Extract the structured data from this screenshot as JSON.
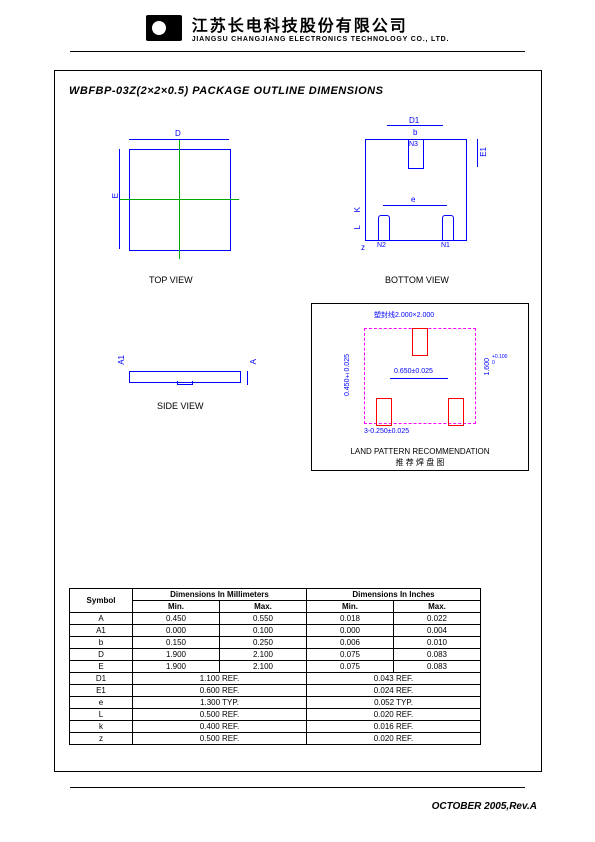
{
  "company": {
    "chinese": "江苏长电科技股份有限公司",
    "english": "JIANGSU CHANGJIANG ELECTRONICS TECHNOLOGY CO., LTD."
  },
  "title": "WBFBP-03Z(2×2×0.5)  PACKAGE  OUTLINE  DIMENSIONS",
  "views": {
    "top": "TOP VIEW",
    "bottom": "BOTTOM VIEW",
    "side": "SIDE VIEW"
  },
  "topview": {
    "dim_D": "D",
    "dim_E": "E"
  },
  "botview": {
    "D1": "D1",
    "b": "b",
    "N3": "N3",
    "E1": "E1",
    "K": "K",
    "L": "L",
    "z": "z",
    "N2": "N2",
    "N1": "N1",
    "e": "e"
  },
  "sideview": {
    "A": "A",
    "A1": "A1"
  },
  "landpattern": {
    "top_dim": "塑封线2.000×2.000",
    "center_dim": "0.650±0.025",
    "left_dim": "0.450±0.025",
    "right_dim": "1.600",
    "right_sup": "+0.100\n0",
    "bottom_dim": "3-0.250±0.025",
    "title": "LAND PATTERN RECOMMENDATION",
    "subtitle": "推 荐 焊 盘 图"
  },
  "table": {
    "headers": {
      "symbol": "Symbol",
      "mm": "Dimensions In Millimeters",
      "in": "Dimensions In Inches",
      "min": "Min.",
      "max": "Max."
    },
    "rows": [
      {
        "sym": "A",
        "mm_min": "0.450",
        "mm_max": "0.550",
        "in_min": "0.018",
        "in_max": "0.022"
      },
      {
        "sym": "A1",
        "mm_min": "0.000",
        "mm_max": "0.100",
        "in_min": "0.000",
        "in_max": "0.004"
      },
      {
        "sym": "b",
        "mm_min": "0.150",
        "mm_max": "0.250",
        "in_min": "0.006",
        "in_max": "0.010"
      },
      {
        "sym": "D",
        "mm_min": "1.900",
        "mm_max": "2.100",
        "in_min": "0.075",
        "in_max": "0.083"
      },
      {
        "sym": "E",
        "mm_min": "1.900",
        "mm_max": "2.100",
        "in_min": "0.075",
        "in_max": "0.083"
      },
      {
        "sym": "D1",
        "mm": "1.100 REF.",
        "in": "0.043 REF."
      },
      {
        "sym": "E1",
        "mm": "0.600 REF.",
        "in": "0.024 REF."
      },
      {
        "sym": "e",
        "mm": "1.300 TYP.",
        "in": "0.052 TYP."
      },
      {
        "sym": "L",
        "mm": "0.500 REF.",
        "in": "0.020 REF."
      },
      {
        "sym": "k",
        "mm": "0.400 REF.",
        "in": "0.016 REF."
      },
      {
        "sym": "z",
        "mm": "0.500 REF.",
        "in": "0.020 REF."
      }
    ]
  },
  "footer": "OCTOBER 2005,Rev.A",
  "colors": {
    "blue": "#0000ff",
    "green": "#00aa00",
    "red": "#ff0000",
    "magenta": "#ff00ff"
  }
}
